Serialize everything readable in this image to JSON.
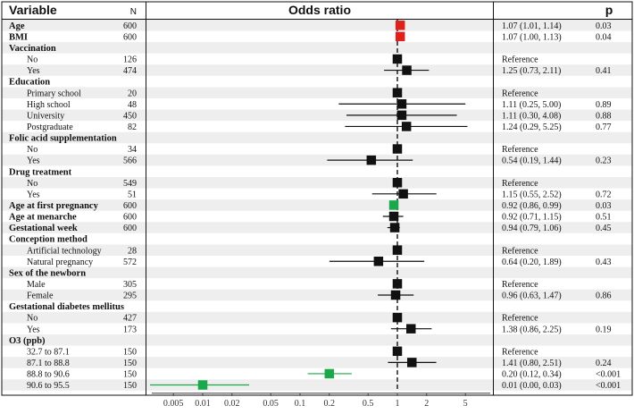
{
  "header": {
    "variable": "Variable",
    "n": "N",
    "odds_ratio": "Odds ratio",
    "p": "p"
  },
  "colors": {
    "black": "#111111",
    "red": "#e0201b",
    "green": "#1aa84a",
    "stripe": "#eeeeee"
  },
  "chart_data": {
    "type": "forest",
    "title": "Odds ratio",
    "x_scale": "log",
    "xlim": [
      0.003,
      9
    ],
    "ticks": [
      0.005,
      0.01,
      0.02,
      0.05,
      0.1,
      0.2,
      0.5,
      1,
      2,
      5
    ],
    "tick_labels": [
      "0.005",
      "0.01",
      "0.02",
      "0.05",
      "0.1",
      "0.2",
      "0.5",
      "1",
      "2",
      "5"
    ],
    "reference_line": 1,
    "rows": [
      {
        "label": "Age",
        "bold": true,
        "n": "600",
        "or": 1.07,
        "lo": 1.01,
        "hi": 1.14,
        "ci_text": "1.07 (1.01, 1.14)",
        "p": "0.03",
        "color": "red"
      },
      {
        "label": "BMI",
        "bold": true,
        "n": "600",
        "or": 1.07,
        "lo": 1.0,
        "hi": 1.13,
        "ci_text": "1.07 (1.00, 1.13)",
        "p": "0.04",
        "color": "red"
      },
      {
        "label": "Vaccination",
        "bold": true,
        "n": "",
        "or": null,
        "ci_text": "",
        "p": ""
      },
      {
        "label": "No",
        "indent": 1,
        "n": "126",
        "or": 1,
        "ref": true,
        "ci_text": "Reference",
        "p": ""
      },
      {
        "label": "Yes",
        "indent": 1,
        "n": "474",
        "or": 1.25,
        "lo": 0.73,
        "hi": 2.11,
        "ci_text": "1.25 (0.73, 2.11)",
        "p": "0.41"
      },
      {
        "label": "Education",
        "bold": true,
        "n": "",
        "or": null,
        "ci_text": "",
        "p": ""
      },
      {
        "label": "Primary school",
        "indent": 1,
        "n": "20",
        "or": 1,
        "ref": true,
        "ci_text": "Reference",
        "p": ""
      },
      {
        "label": "High school",
        "indent": 1,
        "n": "48",
        "or": 1.11,
        "lo": 0.25,
        "hi": 5.0,
        "ci_text": "1.11 (0.25, 5.00)",
        "p": "0.89"
      },
      {
        "label": "University",
        "indent": 1,
        "n": "450",
        "or": 1.11,
        "lo": 0.3,
        "hi": 4.08,
        "ci_text": "1.11 (0.30, 4.08)",
        "p": "0.88"
      },
      {
        "label": "Postgraduate",
        "indent": 1,
        "n": "82",
        "or": 1.24,
        "lo": 0.29,
        "hi": 5.25,
        "ci_text": "1.24 (0.29, 5.25)",
        "p": "0.77"
      },
      {
        "label": "Folic acid supplementation",
        "bold": true,
        "n": "",
        "or": null,
        "ci_text": "",
        "p": ""
      },
      {
        "label": "No",
        "indent": 1,
        "n": "34",
        "or": 1,
        "ref": true,
        "ci_text": "Reference",
        "p": ""
      },
      {
        "label": "Yes",
        "indent": 1,
        "n": "566",
        "or": 0.54,
        "lo": 0.19,
        "hi": 1.44,
        "ci_text": "0.54 (0.19, 1.44)",
        "p": "0.23"
      },
      {
        "label": "Drug treatment",
        "bold": true,
        "n": "",
        "or": null,
        "ci_text": "",
        "p": ""
      },
      {
        "label": "No",
        "indent": 1,
        "n": "549",
        "or": 1,
        "ref": true,
        "ci_text": "Reference",
        "p": ""
      },
      {
        "label": "Yes",
        "indent": 1,
        "n": "51",
        "or": 1.15,
        "lo": 0.55,
        "hi": 2.52,
        "ci_text": "1.15 (0.55, 2.52)",
        "p": "0.72"
      },
      {
        "label": "Age at first pregnancy",
        "bold": true,
        "n": "600",
        "or": 0.92,
        "lo": 0.86,
        "hi": 0.99,
        "ci_text": "0.92 (0.86, 0.99)",
        "p": "0.03",
        "color": "green"
      },
      {
        "label": "Age at menarche",
        "bold": true,
        "n": "600",
        "or": 0.92,
        "lo": 0.71,
        "hi": 1.15,
        "ci_text": "0.92 (0.71, 1.15)",
        "p": "0.51"
      },
      {
        "label": "Gestational week",
        "bold": true,
        "n": "600",
        "or": 0.94,
        "lo": 0.79,
        "hi": 1.06,
        "ci_text": "0.94 (0.79, 1.06)",
        "p": "0.45"
      },
      {
        "label": "Conception method",
        "bold": true,
        "n": "",
        "or": null,
        "ci_text": "",
        "p": ""
      },
      {
        "label": "Artificial technology",
        "indent": 1,
        "n": "28",
        "or": 1,
        "ref": true,
        "ci_text": "Reference",
        "p": ""
      },
      {
        "label": "Natural pregnancy",
        "indent": 1,
        "n": "572",
        "or": 0.64,
        "lo": 0.2,
        "hi": 1.89,
        "ci_text": "0.64 (0.20, 1.89)",
        "p": "0.43"
      },
      {
        "label": "Sex of the newborn",
        "bold": true,
        "n": "",
        "or": null,
        "ci_text": "",
        "p": ""
      },
      {
        "label": "Male",
        "indent": 1,
        "n": "305",
        "or": 1,
        "ref": true,
        "ci_text": "Reference",
        "p": ""
      },
      {
        "label": "Female",
        "indent": 1,
        "n": "295",
        "or": 0.96,
        "lo": 0.63,
        "hi": 1.47,
        "ci_text": "0.96 (0.63, 1.47)",
        "p": "0.86"
      },
      {
        "label": "Gestational diabetes mellitus",
        "bold": true,
        "n": "",
        "or": null,
        "ci_text": "",
        "p": ""
      },
      {
        "label": "No",
        "indent": 1,
        "n": "427",
        "or": 1,
        "ref": true,
        "ci_text": "Reference",
        "p": ""
      },
      {
        "label": "Yes",
        "indent": 1,
        "n": "173",
        "or": 1.38,
        "lo": 0.86,
        "hi": 2.25,
        "ci_text": "1.38 (0.86, 2.25)",
        "p": "0.19"
      },
      {
        "label": "O3 (ppb)",
        "bold": true,
        "n": "",
        "or": null,
        "ci_text": "",
        "p": ""
      },
      {
        "label": "32.7 to 87.1",
        "indent": 1,
        "n": "150",
        "or": 1,
        "ref": true,
        "ci_text": "Reference",
        "p": ""
      },
      {
        "label": "87.1 to 88.8",
        "indent": 1,
        "n": "150",
        "or": 1.41,
        "lo": 0.8,
        "hi": 2.51,
        "ci_text": "1.41 (0.80, 2.51)",
        "p": "0.24"
      },
      {
        "label": "88.8 to 90.6",
        "indent": 1,
        "n": "150",
        "or": 0.2,
        "lo": 0.12,
        "hi": 0.34,
        "ci_text": "0.20 (0.12, 0.34)",
        "p": "<0.001",
        "color": "green"
      },
      {
        "label": "90.6 to 95.5",
        "indent": 1,
        "n": "150",
        "or": 0.01,
        "lo": 0.0,
        "hi": 0.03,
        "ci_text": "0.01 (0.00, 0.03)",
        "p": "<0.001",
        "color": "green"
      }
    ]
  }
}
